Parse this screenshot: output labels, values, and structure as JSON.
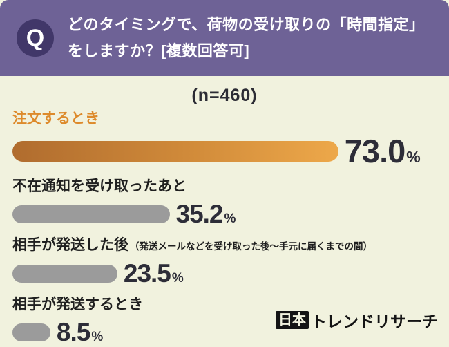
{
  "header": {
    "q_label": "Q",
    "line1": "どのタイミングで、荷物の受け取りの「時間指定」",
    "line2": "をしますか？[複数回答可]",
    "bg_color": "#6e6296",
    "badge_color": "#413769"
  },
  "chart_data": {
    "type": "bar",
    "orientation": "horizontal",
    "title": "どのタイミングで、荷物の受け取りの「時間指定」をしますか？[複数回答可]",
    "sample_label": "(n=460)",
    "unit": "%",
    "categories": [
      "注文するとき",
      "不在通知を受け取ったあと",
      "相手が発送した後（発送メールなどを受け取った後〜手元に届くまでの間）",
      "相手が発送するとき"
    ],
    "values": [
      73.0,
      35.2,
      23.5,
      8.5
    ],
    "bars": [
      {
        "label": "注文するとき",
        "note": "",
        "value": 73.0,
        "display": "73.0",
        "highlight": true
      },
      {
        "label": "不在通知を受け取ったあと",
        "note": "",
        "value": 35.2,
        "display": "35.2",
        "highlight": false
      },
      {
        "label": "相手が発送した後",
        "note": "（発送メールなどを受け取った後〜手元に届くまでの間）",
        "value": 23.5,
        "display": "23.5",
        "highlight": false
      },
      {
        "label": "相手が発送するとき",
        "note": "",
        "value": 8.5,
        "display": "8.5",
        "highlight": false
      }
    ],
    "xlim": [
      0,
      95
    ],
    "grid": false,
    "legend": "none",
    "colors": {
      "highlight_bar_start": "#b06c2e",
      "highlight_bar_end": "#eda84a",
      "highlight_label": "#dd8a2b",
      "bar_gray": "#9b9b9b",
      "value_text": "#2d2d38",
      "background": "#f1f2de"
    }
  },
  "footer": {
    "brand_box": "日本",
    "brand_rest": "トレンドリサーチ"
  }
}
